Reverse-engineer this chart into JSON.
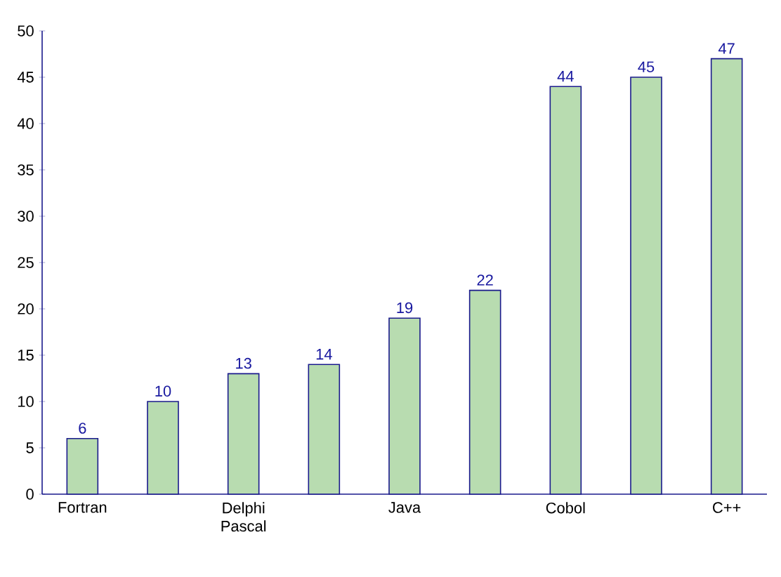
{
  "chart_data": {
    "type": "bar",
    "categories": [
      "Fortran",
      null,
      "Delphi Pascal",
      null,
      "Java",
      null,
      "Cobol",
      null,
      "C++"
    ],
    "values": [
      6,
      10,
      13,
      14,
      19,
      22,
      44,
      45,
      47
    ],
    "color": "#b8dcb0",
    "ylim": [
      0,
      50
    ],
    "yticks": [
      0,
      5,
      10,
      15,
      20,
      25,
      30,
      35,
      40,
      45,
      50
    ],
    "data_labels": true,
    "grid": false
  }
}
